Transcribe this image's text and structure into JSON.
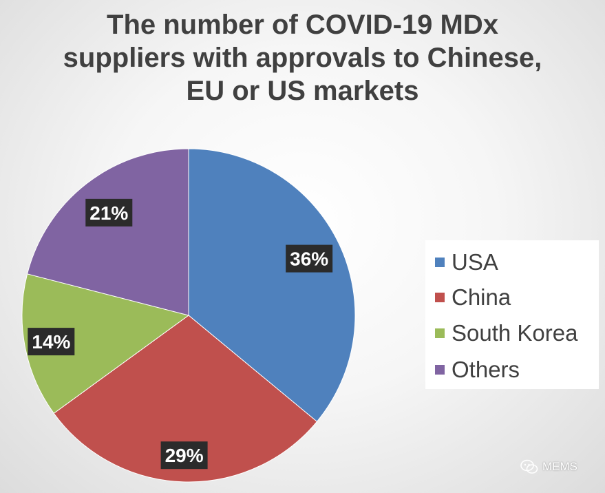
{
  "title_lines": [
    "The number of COVID-19 MDx",
    "suppliers with approvals to Chinese,",
    "EU or US markets"
  ],
  "chart_data": {
    "type": "pie",
    "title": "The number of COVID-19 MDx suppliers with approvals to Chinese, EU or US markets",
    "slices": [
      {
        "label": "USA",
        "value": 36,
        "display": "36%",
        "color": "#4f81bd"
      },
      {
        "label": "China",
        "value": 29,
        "display": "29%",
        "color": "#c0504d"
      },
      {
        "label": "South Korea",
        "value": 14,
        "display": "14%",
        "color": "#9bbb59"
      },
      {
        "label": "Others",
        "value": 21,
        "display": "21%",
        "color": "#8064a2"
      }
    ],
    "legend_position": "right",
    "start_angle": "12 o'clock, clockwise",
    "data_label_style": "white bold text on dark box"
  },
  "legend": [
    {
      "label": "USA",
      "color": "#4f81bd"
    },
    {
      "label": "China",
      "color": "#c0504d"
    },
    {
      "label": "South Korea",
      "color": "#9bbb59"
    },
    {
      "label": "Others",
      "color": "#8064a2"
    }
  ],
  "watermark": {
    "text": "MEMS",
    "icon": "wechat-icon"
  }
}
